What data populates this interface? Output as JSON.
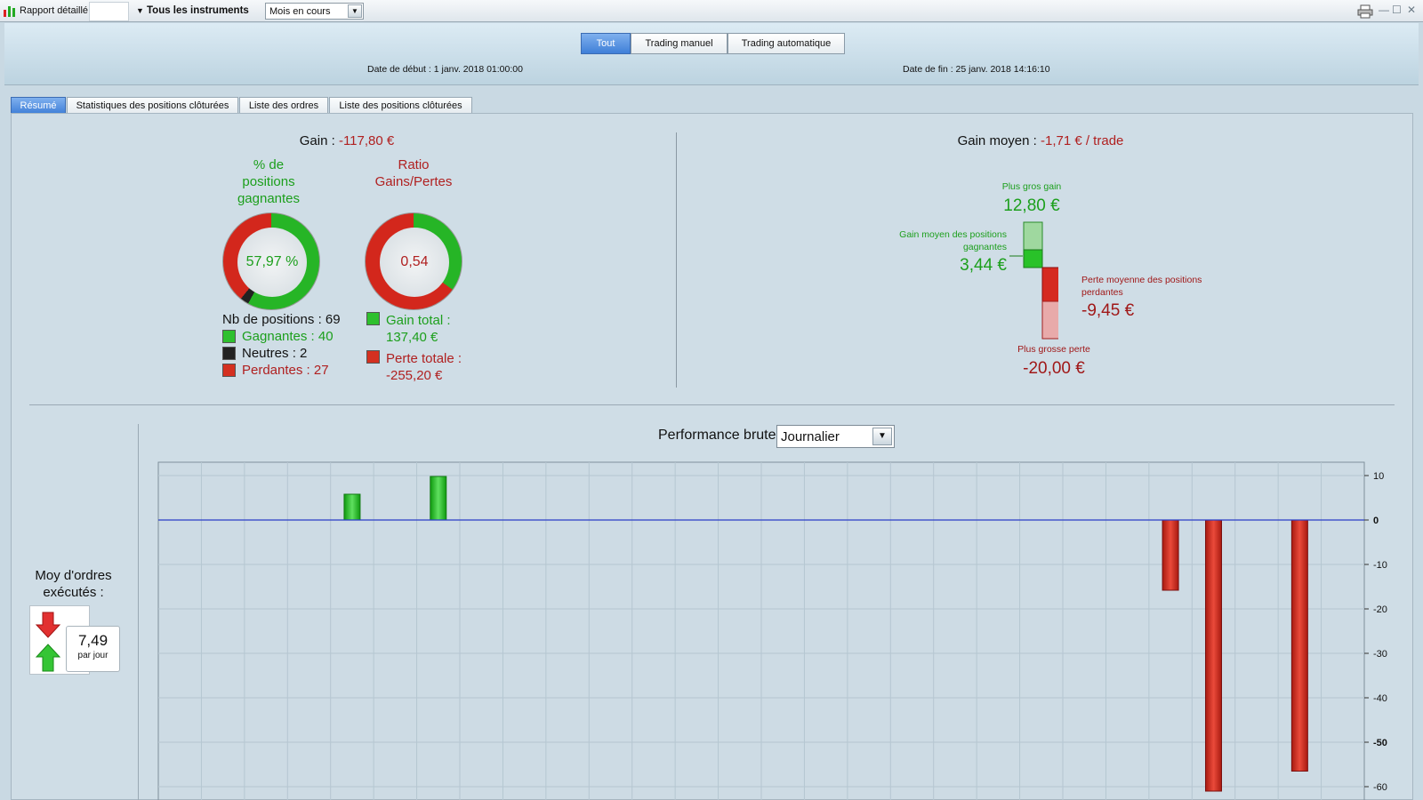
{
  "titlebar": {
    "report_label": "Rapport détaillé",
    "instrument_label": "Tous les instruments",
    "period_value": "Mois en cours"
  },
  "header": {
    "buttons": [
      "Tout",
      "Trading manuel",
      "Trading automatique"
    ],
    "start_date_label": "Date de début :",
    "start_date": "1 janv. 2018 01:00:00",
    "end_date_label": "Date de fin :",
    "end_date": "25 janv. 2018 14:16:10"
  },
  "tabs": [
    "Résumé",
    "Statistiques des positions clôturées",
    "Liste des ordres",
    "Liste des positions clôturées"
  ],
  "summary": {
    "gain_label": "Gain :",
    "gain_value": "-117,80 €",
    "winning_pct_title": [
      "% de",
      "positions",
      "gagnantes"
    ],
    "winning_pct_value": "57,97 %",
    "winning_fraction": 0.5797,
    "neutral_fraction": 0.029,
    "ratio_title": [
      "Ratio",
      "Gains/Pertes"
    ],
    "ratio_value": "0,54",
    "ratio_fraction": 0.35,
    "nb_positions": "Nb de positions : 69",
    "gagnantes": "Gagnantes : 40",
    "neutres": "Neutres : 2",
    "perdantes": "Perdantes : 27",
    "gain_total_label": "Gain total :",
    "gain_total_value": "137,40 €",
    "perte_totale_label": "Perte totale :",
    "perte_totale_value": "-255,20 €"
  },
  "avg": {
    "gain_moyen_label": "Gain moyen :",
    "gain_moyen_value": "-1,71 € / trade",
    "plus_gros_gain_label": "Plus gros gain",
    "plus_gros_gain_value": "12,80 €",
    "gain_moyen_gagnantes_label": [
      "Gain moyen des positions",
      "gagnantes"
    ],
    "gain_moyen_gagnantes_value": "3,44 €",
    "perte_moyenne_label": [
      "Perte moyenne des positions",
      "perdantes"
    ],
    "perte_moyenne_value": "-9,45 €",
    "plus_grosse_perte_label": "Plus grosse perte",
    "plus_grosse_perte_value": "-20,00 €"
  },
  "orders": {
    "title": [
      "Moy d'ordres",
      "exécutés :"
    ],
    "value": "7,49",
    "unit": "par jour"
  },
  "performance": {
    "label": "Performance brute",
    "period": "Journalier"
  },
  "colors": {
    "green": "#1c9f1c",
    "red": "#b02020",
    "accent": "#3f7fd8"
  },
  "chart_data": {
    "type": "bar",
    "x": [
      8,
      10,
      27,
      28,
      30
    ],
    "values": [
      5.8,
      9.8,
      -15.8,
      -61.0,
      -56.5
    ],
    "ylim": [
      -63,
      13
    ],
    "yticks": [
      10,
      0,
      -10,
      -20,
      -30,
      -40,
      -50,
      -60
    ],
    "ytick_labels": [
      "10",
      "0",
      "-10",
      "-20",
      "-30",
      "-40",
      "-50",
      "-60"
    ],
    "xlim": [
      3.5,
      31.5
    ],
    "grid": true
  }
}
